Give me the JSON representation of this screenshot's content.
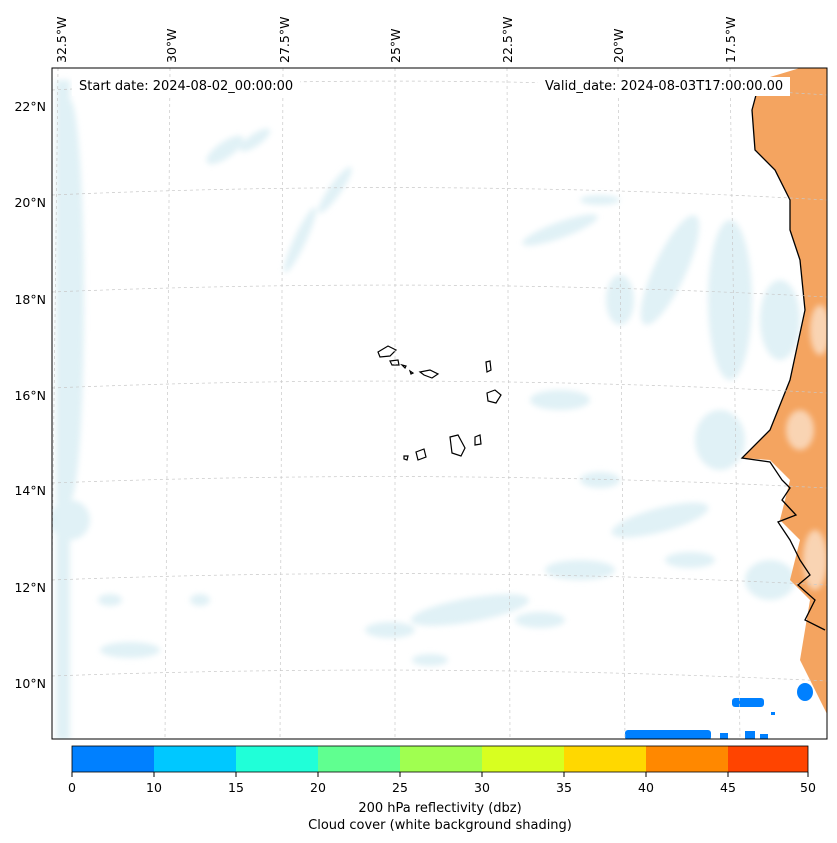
{
  "header": {
    "start_label": "Start date: 2024-08-02_00:00:00",
    "valid_label": "Valid_date: 2024-08-03T17:00:00.00"
  },
  "map": {
    "lon_labels": [
      "32.5°W",
      "30°W",
      "27.5°W",
      "25°W",
      "22.5°W",
      "20°W",
      "17.5°W"
    ],
    "lat_labels": [
      "22°N",
      "20°N",
      "18°N",
      "16°N",
      "14°N",
      "12°N",
      "10°N"
    ],
    "land_color": "#f4a460",
    "cloud_color": "#d6ecf3",
    "coastline_color": "#000000",
    "gridlines": true
  },
  "colorbar": {
    "ticks": [
      "0",
      "10",
      "15",
      "20",
      "25",
      "30",
      "35",
      "40",
      "45",
      "50"
    ],
    "colors": [
      "#0080ff",
      "#00c8ff",
      "#20ffd8",
      "#60ff90",
      "#a0ff50",
      "#d8ff20",
      "#ffd800",
      "#ff8800",
      "#ff4400"
    ],
    "label_line1": "200 hPa reflectivity (dbz)",
    "label_line2": "Cloud cover (white background shading)"
  }
}
